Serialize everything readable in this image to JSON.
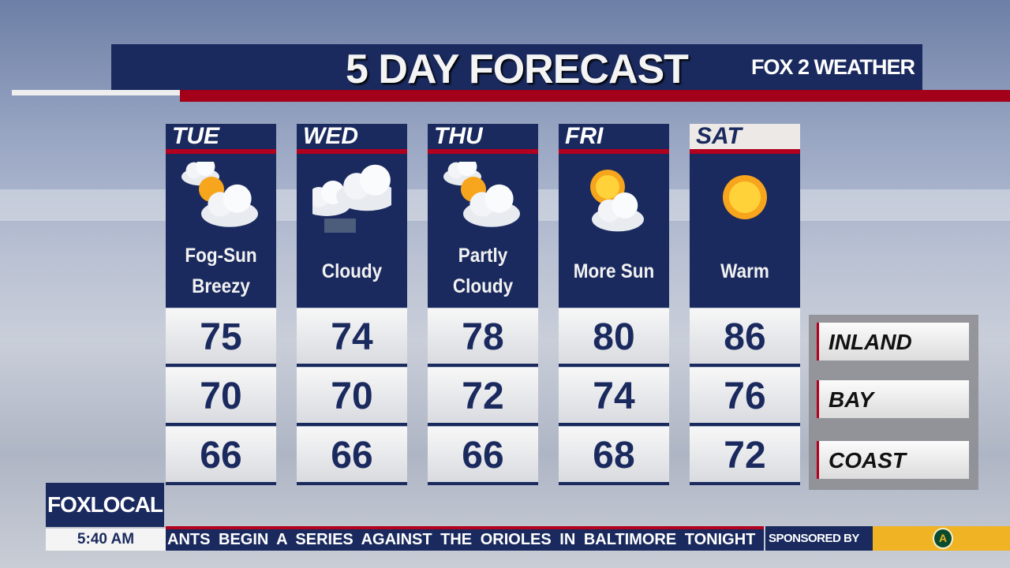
{
  "title": "5 DAY FORECAST",
  "brand": "FOX 2 WEATHER",
  "colors": {
    "navy": "#1a2a5e",
    "red": "#b2001f",
    "sponsor_yellow": "#f0b323"
  },
  "days": [
    {
      "day": "TUE",
      "icon": "fog-sun-cloud-icon",
      "cond": [
        "Fog-Sun",
        "Breezy"
      ],
      "inland": "75",
      "bay": "70",
      "coast": "66"
    },
    {
      "day": "WED",
      "icon": "cloud-drizzle-icon",
      "cond": [
        "Cloudy"
      ],
      "inland": "74",
      "bay": "70",
      "coast": "66"
    },
    {
      "day": "THU",
      "icon": "partly-cloudy-icon",
      "cond": [
        "Partly",
        "Cloudy"
      ],
      "inland": "78",
      "bay": "72",
      "coast": "66"
    },
    {
      "day": "FRI",
      "icon": "sun-cloud-icon",
      "cond": [
        "More Sun"
      ],
      "inland": "80",
      "bay": "74",
      "coast": "68"
    },
    {
      "day": "SAT",
      "icon": "sun-icon",
      "cond": [
        "Warm"
      ],
      "inland": "86",
      "bay": "76",
      "coast": "72"
    }
  ],
  "legend": {
    "inland": "INLAND",
    "bay": "BAY",
    "coast": "COAST"
  },
  "footer": {
    "station": "FOXLOCAL",
    "time": "5:40 AM",
    "ticker": "ANTS BEGIN A SERIES AGAINST THE ORIOLES IN BALTIMORE TONIGHT",
    "sponsored": "SPONSORED BY",
    "sponsor_logo": "A's"
  }
}
